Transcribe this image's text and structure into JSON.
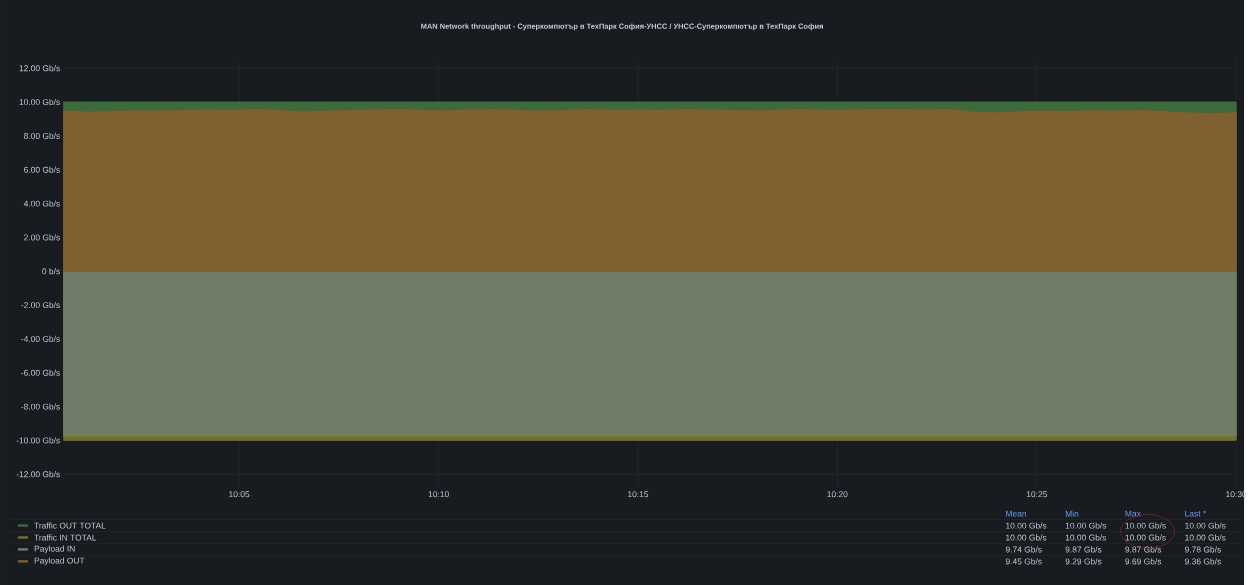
{
  "chart_data": {
    "type": "area",
    "title": "MAN Network throughput - Суперкомпютър в ТехПарк София-УНСС  /  УНСС-Суперкомпютър в ТехПарк София",
    "x": [
      10.01,
      10.02,
      10.03,
      10.04,
      10.05,
      10.06,
      10.07,
      10.08,
      10.09,
      10.1,
      10.11,
      10.12,
      10.13,
      10.14,
      10.15,
      10.16,
      10.17,
      10.18,
      10.19,
      10.2,
      10.21,
      10.22,
      10.23,
      10.24,
      10.25,
      10.26,
      10.27,
      10.28,
      10.29,
      10.3,
      10.31,
      10.32,
      10.33,
      10.34,
      10.35,
      10.36,
      10.37,
      10.38,
      10.39,
      10.4,
      10.41,
      10.42,
      10.43,
      10.44,
      10.45,
      10.46,
      10.47,
      10.48,
      10.49,
      10.5
    ],
    "series": [
      {
        "name": "Traffic OUT TOTAL",
        "color": "#3e6b3e",
        "values": [
          10,
          10,
          10,
          10,
          10,
          10,
          10,
          10,
          10,
          10,
          10,
          10,
          10,
          10,
          10,
          10,
          10,
          10,
          10,
          10,
          10,
          10,
          10,
          10,
          10,
          10,
          10,
          10,
          10,
          10,
          10,
          10,
          10,
          10,
          10,
          10,
          10,
          10,
          10,
          10,
          10,
          10,
          10,
          10,
          10,
          10,
          10,
          10,
          10,
          10
        ]
      },
      {
        "name": "Traffic IN TOTAL",
        "color": "#7a7022",
        "values": [
          -10,
          -10,
          -10,
          -10,
          -10,
          -10,
          -10,
          -10,
          -10,
          -10,
          -10,
          -10,
          -10,
          -10,
          -10,
          -10,
          -10,
          -10,
          -10,
          -10,
          -10,
          -10,
          -10,
          -10,
          -10,
          -10,
          -10,
          -10,
          -10,
          -10,
          -10,
          -10,
          -10,
          -10,
          -10,
          -10,
          -10,
          -10,
          -10,
          -10,
          -10,
          -10,
          -10,
          -10,
          -10,
          -10,
          -10,
          -10,
          -10,
          -10
        ]
      },
      {
        "name": "Payload IN",
        "color": "#707c66",
        "values": [
          -9.75,
          -9.75,
          -9.75,
          -9.75,
          -9.75,
          -9.75,
          -9.75,
          -9.75,
          -9.75,
          -9.75,
          -9.75,
          -9.75,
          -9.75,
          -9.75,
          -9.75,
          -9.75,
          -9.75,
          -9.75,
          -9.75,
          -9.75,
          -9.75,
          -9.75,
          -9.75,
          -9.75,
          -9.75,
          -9.75,
          -9.75,
          -9.75,
          -9.75,
          -9.75,
          -9.75,
          -9.75,
          -9.75,
          -9.75,
          -9.75,
          -9.75,
          -9.75,
          -9.75,
          -9.75,
          -9.75,
          -9.75,
          -9.75,
          -9.75,
          -9.75,
          -9.75,
          -9.75,
          -9.75,
          -9.75,
          -9.75,
          -9.75
        ]
      },
      {
        "name": "Payload OUT",
        "color": "#7f6030",
        "values": [
          9.45,
          9.4,
          9.42,
          9.47,
          9.45,
          9.5,
          9.52,
          9.5,
          9.55,
          9.5,
          9.4,
          9.45,
          9.5,
          9.52,
          9.55,
          9.5,
          9.48,
          9.52,
          9.55,
          9.5,
          9.45,
          9.5,
          9.55,
          9.5,
          9.52,
          9.5,
          9.55,
          9.52,
          9.5,
          9.48,
          9.52,
          9.55,
          9.5,
          9.52,
          9.55,
          9.55,
          9.53,
          9.55,
          9.4,
          9.35,
          9.42,
          9.45,
          9.42,
          9.48,
          9.45,
          9.5,
          9.42,
          9.35,
          9.3,
          9.36
        ]
      }
    ],
    "xlim": [
      10.01,
      10.5
    ],
    "xticks": [
      {
        "value": 10.0833,
        "label": "10:05"
      },
      {
        "value": 10.1667,
        "label": "10:10"
      },
      {
        "value": 10.25,
        "label": "10:15"
      },
      {
        "value": 10.3333,
        "label": "10:20"
      },
      {
        "value": 10.4167,
        "label": "10:25"
      },
      {
        "value": 10.5,
        "label": "10:30"
      }
    ],
    "ylim": [
      -12.8,
      12.5
    ],
    "yticks": [
      {
        "value": 12,
        "label": "12.00 Gb/s"
      },
      {
        "value": 10,
        "label": "10.00 Gb/s"
      },
      {
        "value": 8,
        "label": "8.00 Gb/s"
      },
      {
        "value": 6,
        "label": "6.00 Gb/s"
      },
      {
        "value": 4,
        "label": "4.00 Gb/s"
      },
      {
        "value": 2,
        "label": "2.00 Gb/s"
      },
      {
        "value": 0,
        "label": "0 b/s"
      },
      {
        "value": -2,
        "label": "-2.00 Gb/s"
      },
      {
        "value": -4,
        "label": "-4.00 Gb/s"
      },
      {
        "value": -6,
        "label": "-6.00 Gb/s"
      },
      {
        "value": -8,
        "label": "-8.00 Gb/s"
      },
      {
        "value": -10,
        "label": "-10.00 Gb/s"
      },
      {
        "value": -12,
        "label": "-12.00 Gb/s"
      }
    ],
    "grid": true,
    "legend": "bottom",
    "annotations": [
      "Mean",
      "Min",
      "Max",
      "Last *",
      "10.00 Gb/s",
      "10.00 Gb/s",
      "10.00 Gb/s",
      "10.00 Gb/s",
      "10.00 Gb/s",
      "10.00 Gb/s",
      "10.00 Gb/s",
      "10.00 Gb/s",
      "9.74 Gb/s",
      "9.87 Gb/s",
      "9.87 Gb/s",
      "9.78 Gb/s",
      "9.45 Gb/s",
      "9.29 Gb/s",
      "9.69 Gb/s",
      "9.36 Gb/s"
    ]
  }
}
